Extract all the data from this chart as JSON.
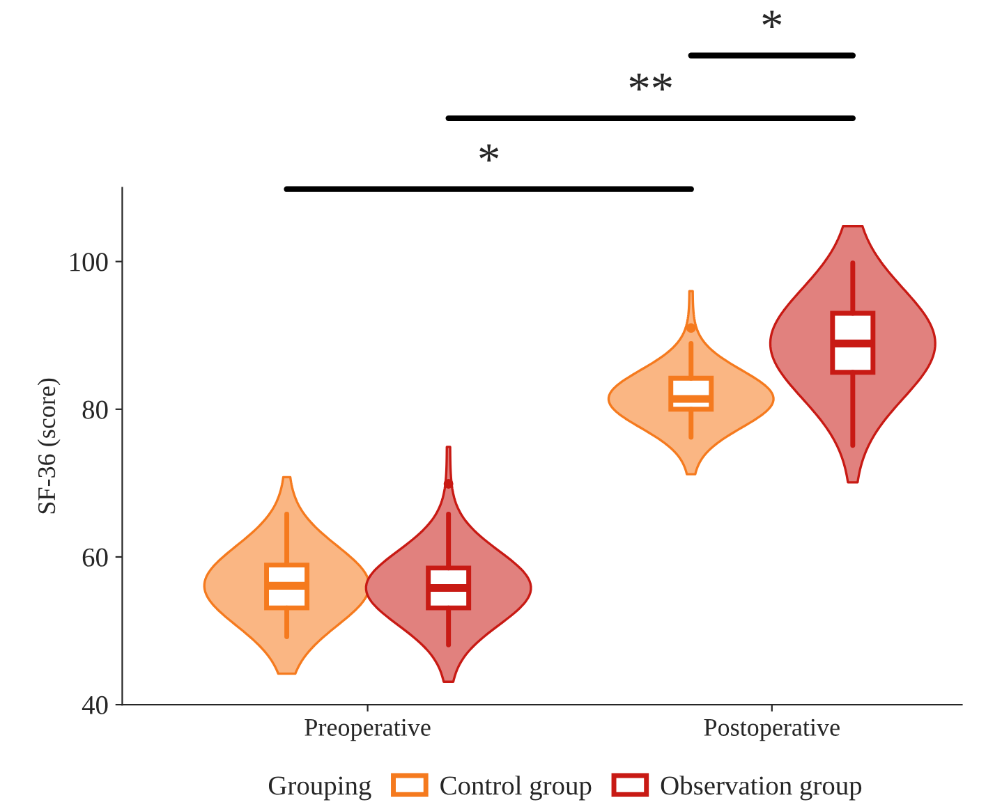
{
  "chart_data": {
    "type": "box",
    "ylabel": "SF-36 (score)",
    "legend_title": "Grouping",
    "legend": "bottom",
    "categories": [
      "Preoperative",
      "Postoperative"
    ],
    "ylim": [
      40,
      110
    ],
    "yticks": [
      40,
      60,
      80,
      100
    ],
    "series": [
      {
        "name": "Control group",
        "color": "#f57a1e",
        "boxes": [
          {
            "low": 49.2,
            "q1": 53.1,
            "median": 56.1,
            "q3": 58.9,
            "high": 65.8
          },
          {
            "low": 76.2,
            "q1": 80.0,
            "median": 81.4,
            "q3": 84.2,
            "high": 88.9,
            "outliers": [
              91.0
            ]
          }
        ]
      },
      {
        "name": "Observation group",
        "color": "#c81a14",
        "boxes": [
          {
            "low": 48.1,
            "q1": 53.1,
            "median": 55.8,
            "q3": 58.5,
            "high": 65.8,
            "outliers": [
              69.9
            ]
          },
          {
            "low": 75.1,
            "q1": 85.0,
            "median": 88.9,
            "q3": 93.0,
            "high": 99.8
          }
        ]
      }
    ],
    "annotations": [
      "*",
      "**",
      "*"
    ]
  }
}
